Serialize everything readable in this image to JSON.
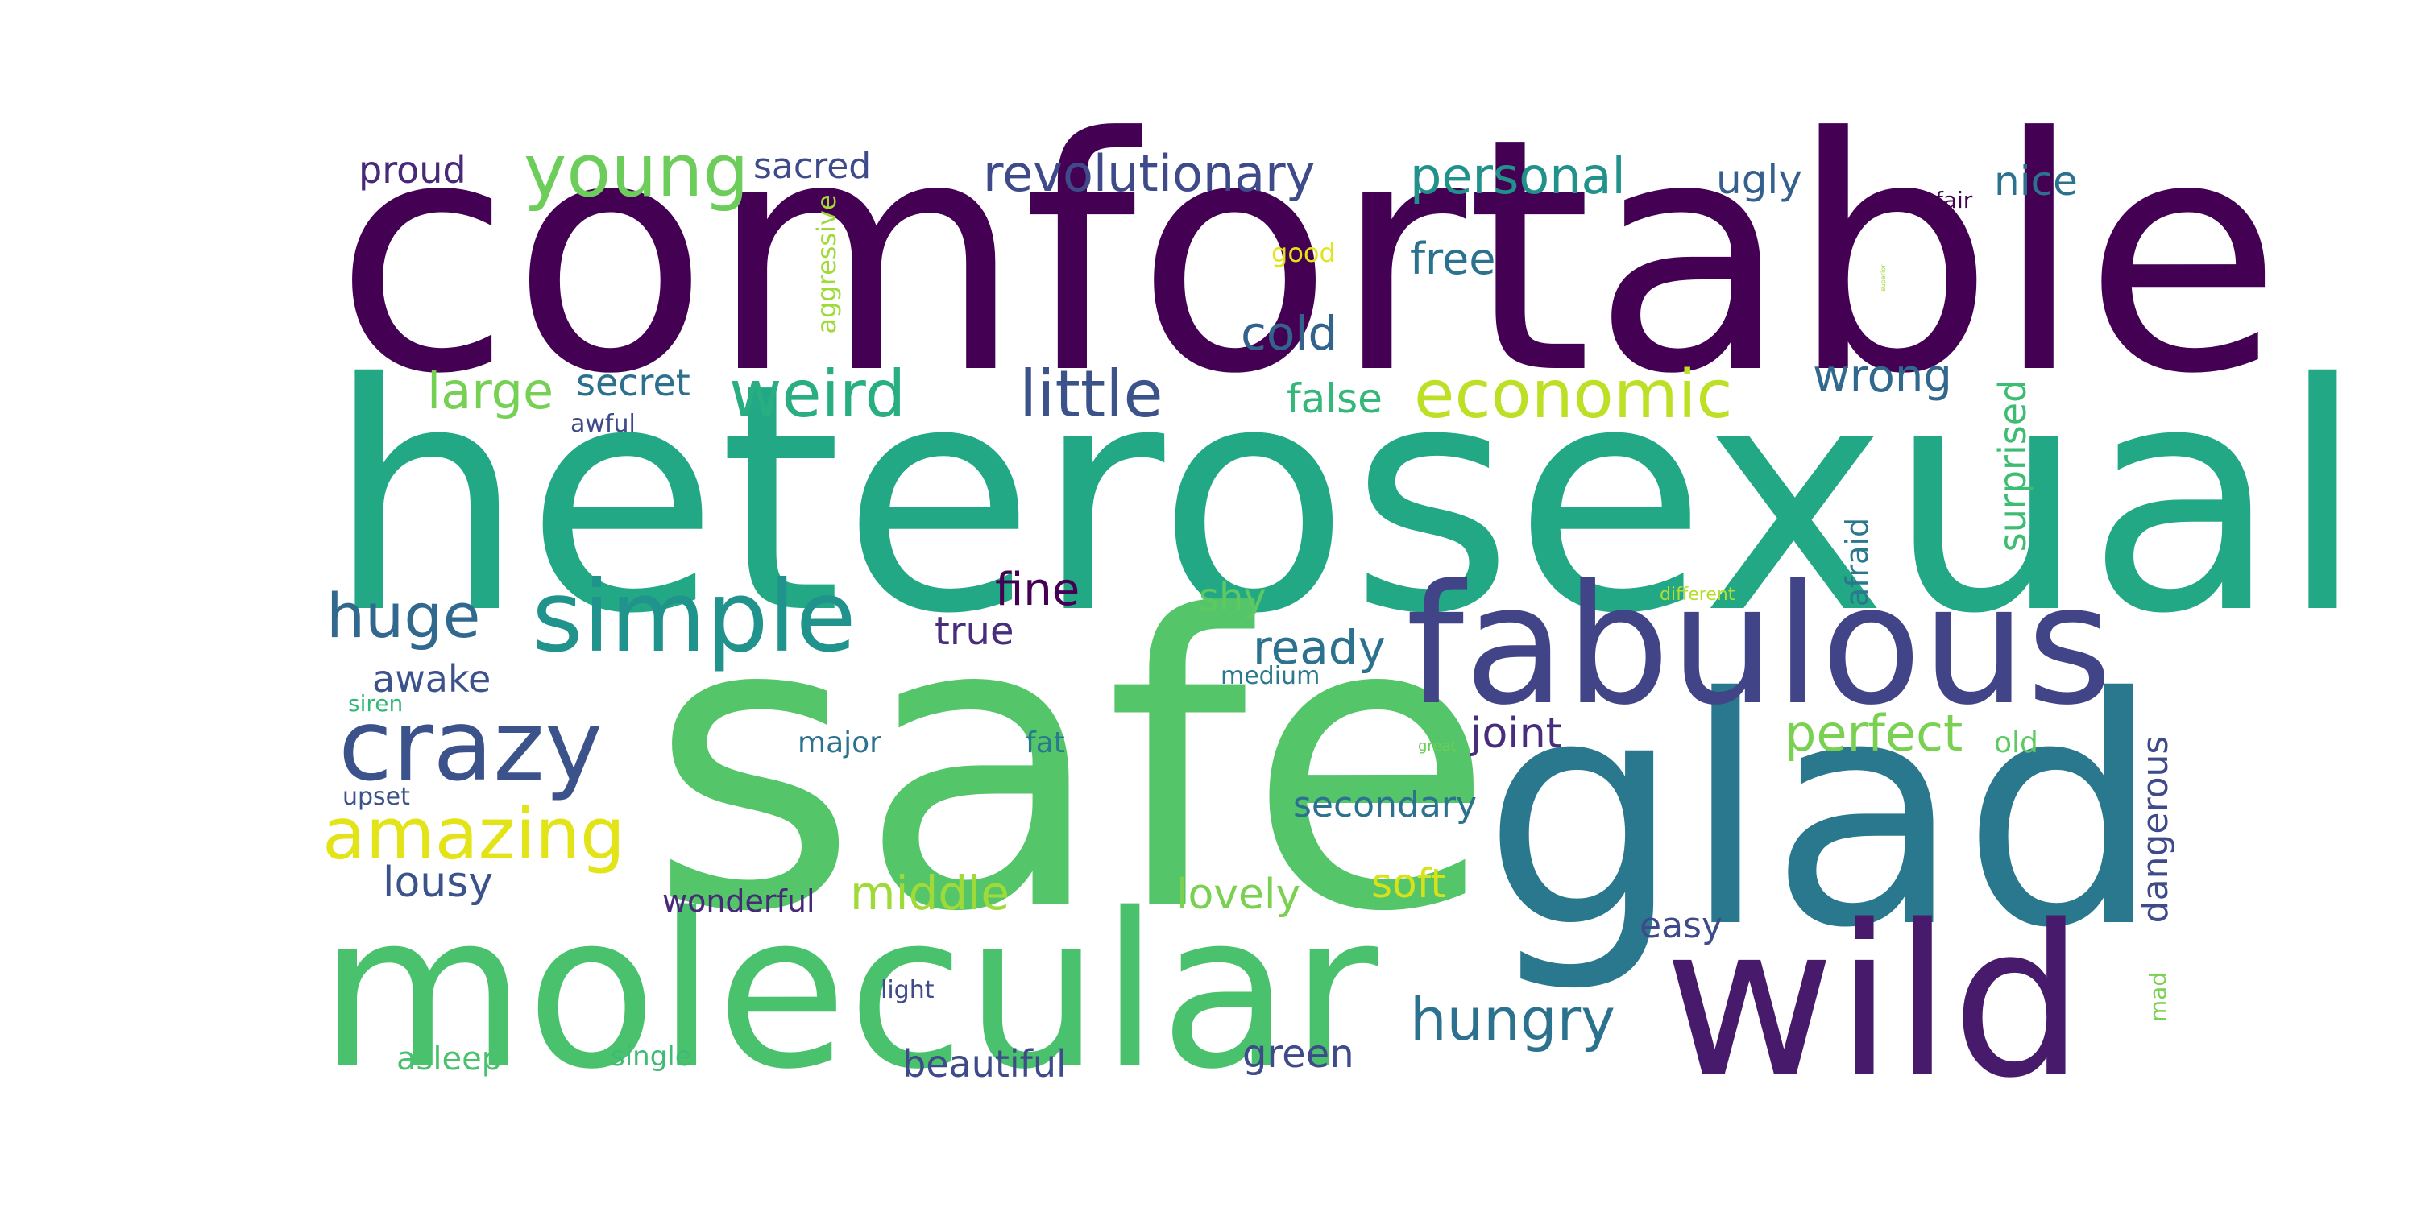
{
  "words": {
    "comfortable": {
      "text": "comfortable",
      "color": "#440154"
    },
    "heterosexual": {
      "text": "heterosexual",
      "color": "#22a884"
    },
    "safe": {
      "text": "safe",
      "color": "#54c568"
    },
    "glad": {
      "text": "glad",
      "color": "#2a788e"
    },
    "fabulous": {
      "text": "fabulous",
      "color": "#414487"
    },
    "molecular": {
      "text": "molecular",
      "color": "#4ac16d"
    },
    "wild": {
      "text": "wild",
      "color": "#481a6c"
    },
    "simple": {
      "text": "simple",
      "color": "#20938c"
    },
    "crazy": {
      "text": "crazy",
      "color": "#3b528b"
    },
    "young": {
      "text": "young",
      "color": "#6ccd5a"
    },
    "revolutionary": {
      "text": "revolutionary",
      "color": "#3e4a89"
    },
    "personal": {
      "text": "personal",
      "color": "#21918c"
    },
    "economic": {
      "text": "economic",
      "color": "#bddf26"
    },
    "little": {
      "text": "little",
      "color": "#3b528b"
    },
    "weird": {
      "text": "weird",
      "color": "#28ae80"
    },
    "hungry": {
      "text": "hungry",
      "color": "#2c728e"
    },
    "amazing": {
      "text": "amazing",
      "color": "#e2e418"
    },
    "huge": {
      "text": "huge",
      "color": "#31688e"
    },
    "ready": {
      "text": "ready",
      "color": "#2c728e"
    },
    "perfect": {
      "text": "perfect",
      "color": "#7ad151"
    },
    "middle": {
      "text": "middle",
      "color": "#a0da39"
    },
    "lovely": {
      "text": "lovely",
      "color": "#7ad151"
    },
    "wrong": {
      "text": "wrong",
      "color": "#31688e"
    },
    "proud": {
      "text": "proud",
      "color": "#482878"
    },
    "sacred": {
      "text": "sacred",
      "color": "#3e4a89"
    },
    "ugly": {
      "text": "ugly",
      "color": "#355f8d"
    },
    "nice": {
      "text": "nice",
      "color": "#2c728e"
    },
    "fair": {
      "text": "fair",
      "color": "#440154"
    },
    "good": {
      "text": "good",
      "color": "#e2e418"
    },
    "free": {
      "text": "free",
      "color": "#2c728e"
    },
    "cold": {
      "text": "cold",
      "color": "#33638d"
    },
    "aggressive": {
      "text": "aggressive",
      "color": "#a0da39"
    },
    "large": {
      "text": "large",
      "color": "#75d054"
    },
    "secret": {
      "text": "secret",
      "color": "#2d708e"
    },
    "false": {
      "text": "false",
      "color": "#35b779"
    },
    "awful": {
      "text": "awful",
      "color": "#3e4a89"
    },
    "surprised": {
      "text": "surprised",
      "color": "#3fbc73"
    },
    "afraid": {
      "text": "afraid",
      "color": "#2a788e"
    },
    "fine": {
      "text": "fine",
      "color": "#440154"
    },
    "true": {
      "text": "true",
      "color": "#472d7b"
    },
    "shy": {
      "text": "shy",
      "color": "#5ec962"
    },
    "awake": {
      "text": "awake",
      "color": "#3b528b"
    },
    "medium": {
      "text": "medium",
      "color": "#2a788e"
    },
    "different": {
      "text": "different",
      "color": "#b5de2b"
    },
    "siren": {
      "text": "siren",
      "color": "#35b779"
    },
    "joint": {
      "text": "joint",
      "color": "#472d7b"
    },
    "major": {
      "text": "major",
      "color": "#2c728e"
    },
    "fat": {
      "text": "fat",
      "color": "#2a788e"
    },
    "great": {
      "text": "great",
      "color": "#6ccd5a"
    },
    "old": {
      "text": "old",
      "color": "#5ec962"
    },
    "upset": {
      "text": "upset",
      "color": "#3b528b"
    },
    "secondary": {
      "text": "secondary",
      "color": "#2c728e"
    },
    "dangerous": {
      "text": "dangerous",
      "color": "#3e4a89"
    },
    "lousy": {
      "text": "lousy",
      "color": "#3b528b"
    },
    "soft": {
      "text": "soft",
      "color": "#d8e219"
    },
    "wonderful": {
      "text": "wonderful",
      "color": "#482878"
    },
    "easy": {
      "text": "easy",
      "color": "#3e4a89"
    },
    "light": {
      "text": "light",
      "color": "#3e4a89"
    },
    "mad": {
      "text": "mad",
      "color": "#7ad151"
    },
    "asleep": {
      "text": "asleep",
      "color": "#4ac16d"
    },
    "single": {
      "text": "single",
      "color": "#3fbc73"
    },
    "beautiful": {
      "text": "beautiful",
      "color": "#3e4a89"
    },
    "green": {
      "text": "green",
      "color": "#3e4a89"
    },
    "tiny": {
      "text": "superior",
      "color": "#a0da39"
    }
  }
}
